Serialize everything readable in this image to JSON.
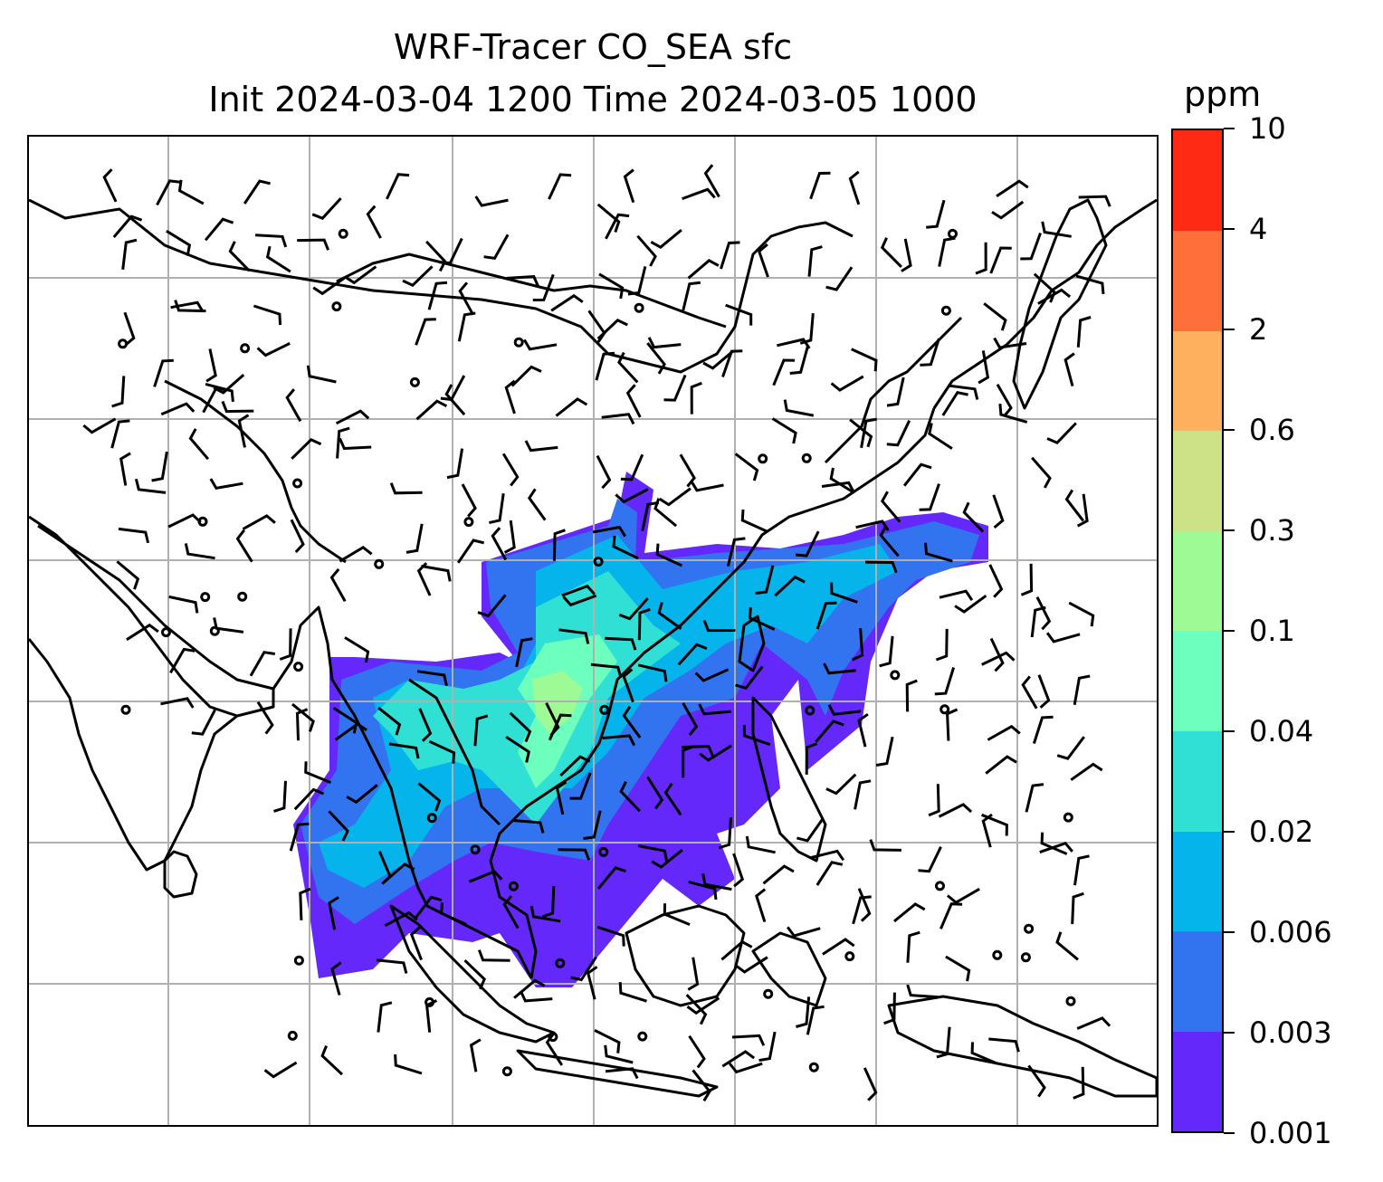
{
  "title": {
    "line1": "WRF-Tracer CO_SEA sfc",
    "line2": "Init 2024-03-04 1200 Time 2024-03-05 1000"
  },
  "colorbar": {
    "unit": "ppm",
    "levels": [
      "0.001",
      "0.003",
      "0.006",
      "0.02",
      "0.04",
      "0.1",
      "0.3",
      "0.6",
      "2",
      "4",
      "10"
    ],
    "colors": [
      "#6428fa",
      "#3273f0",
      "#05b4eb",
      "#30e0d5",
      "#6cffbd",
      "#9dfa95",
      "#cde186",
      "#ffb05f",
      "#ff6f3a",
      "#ff2a14"
    ]
  },
  "map": {
    "domain": "Southeast / East Asia",
    "field": "CO_SEA tracer concentration (surface)",
    "overlays": [
      "coastlines",
      "country borders",
      "wind barbs",
      "gridlines"
    ]
  }
}
